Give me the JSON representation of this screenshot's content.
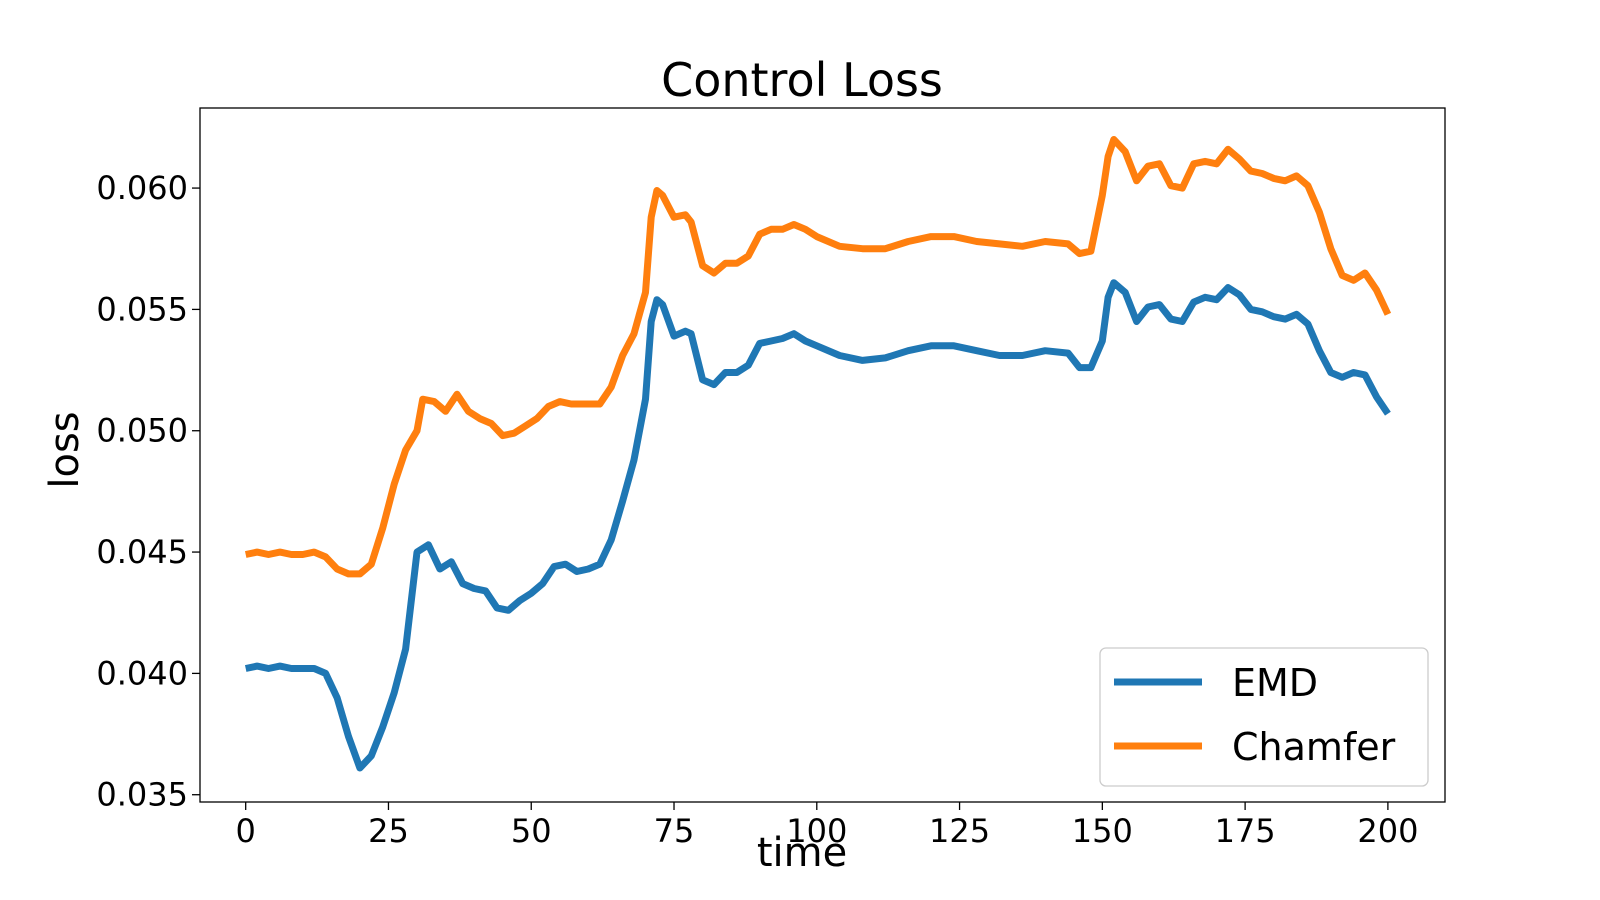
{
  "chart_data": {
    "type": "line",
    "title": "Control Loss",
    "xlabel": "time",
    "ylabel": "loss",
    "xlim": [
      -8,
      210
    ],
    "ylim": [
      0.0347,
      0.0633
    ],
    "xticks": [
      0,
      25,
      50,
      75,
      100,
      125,
      150,
      175,
      200
    ],
    "xtick_labels": [
      "0",
      "25",
      "50",
      "75",
      "100",
      "125",
      "150",
      "175",
      "200"
    ],
    "yticks": [
      0.035,
      0.04,
      0.045,
      0.05,
      0.055,
      0.06
    ],
    "ytick_labels": [
      "0.035",
      "0.040",
      "0.045",
      "0.050",
      "0.055",
      "0.060"
    ],
    "grid": false,
    "legend_position": "bottom-right",
    "series": [
      {
        "name": "EMD",
        "color": "#1f77b4",
        "points": [
          [
            0,
            0.0402
          ],
          [
            2,
            0.0403
          ],
          [
            4,
            0.0402
          ],
          [
            6,
            0.0403
          ],
          [
            8,
            0.0402
          ],
          [
            10,
            0.0402
          ],
          [
            12,
            0.0402
          ],
          [
            14,
            0.04
          ],
          [
            16,
            0.039
          ],
          [
            18,
            0.0374
          ],
          [
            20,
            0.0361
          ],
          [
            22,
            0.0366
          ],
          [
            24,
            0.0378
          ],
          [
            26,
            0.0392
          ],
          [
            28,
            0.041
          ],
          [
            30,
            0.045
          ],
          [
            32,
            0.0453
          ],
          [
            34,
            0.0443
          ],
          [
            36,
            0.0446
          ],
          [
            38,
            0.0437
          ],
          [
            40,
            0.0435
          ],
          [
            42,
            0.0434
          ],
          [
            44,
            0.0427
          ],
          [
            46,
            0.0426
          ],
          [
            48,
            0.043
          ],
          [
            50,
            0.0433
          ],
          [
            52,
            0.0437
          ],
          [
            54,
            0.0444
          ],
          [
            56,
            0.0445
          ],
          [
            58,
            0.0442
          ],
          [
            60,
            0.0443
          ],
          [
            62,
            0.0445
          ],
          [
            64,
            0.0455
          ],
          [
            66,
            0.0471
          ],
          [
            68,
            0.0488
          ],
          [
            70,
            0.0513
          ],
          [
            71,
            0.0545
          ],
          [
            72,
            0.0554
          ],
          [
            73,
            0.0552
          ],
          [
            75,
            0.0539
          ],
          [
            77,
            0.0541
          ],
          [
            78,
            0.054
          ],
          [
            80,
            0.0521
          ],
          [
            82,
            0.0519
          ],
          [
            84,
            0.0524
          ],
          [
            86,
            0.0524
          ],
          [
            88,
            0.0527
          ],
          [
            90,
            0.0536
          ],
          [
            92,
            0.0537
          ],
          [
            94,
            0.0538
          ],
          [
            96,
            0.054
          ],
          [
            98,
            0.0537
          ],
          [
            100,
            0.0535
          ],
          [
            104,
            0.0531
          ],
          [
            108,
            0.0529
          ],
          [
            112,
            0.053
          ],
          [
            116,
            0.0533
          ],
          [
            120,
            0.0535
          ],
          [
            124,
            0.0535
          ],
          [
            128,
            0.0533
          ],
          [
            132,
            0.0531
          ],
          [
            136,
            0.0531
          ],
          [
            140,
            0.0533
          ],
          [
            144,
            0.0532
          ],
          [
            146,
            0.0526
          ],
          [
            148,
            0.0526
          ],
          [
            150,
            0.0537
          ],
          [
            151,
            0.0555
          ],
          [
            152,
            0.0561
          ],
          [
            154,
            0.0557
          ],
          [
            156,
            0.0545
          ],
          [
            158,
            0.0551
          ],
          [
            160,
            0.0552
          ],
          [
            162,
            0.0546
          ],
          [
            164,
            0.0545
          ],
          [
            166,
            0.0553
          ],
          [
            168,
            0.0555
          ],
          [
            170,
            0.0554
          ],
          [
            172,
            0.0559
          ],
          [
            174,
            0.0556
          ],
          [
            176,
            0.055
          ],
          [
            178,
            0.0549
          ],
          [
            180,
            0.0547
          ],
          [
            182,
            0.0546
          ],
          [
            184,
            0.0548
          ],
          [
            186,
            0.0544
          ],
          [
            188,
            0.0533
          ],
          [
            190,
            0.0524
          ],
          [
            192,
            0.0522
          ],
          [
            194,
            0.0524
          ],
          [
            196,
            0.0523
          ],
          [
            198,
            0.0514
          ],
          [
            200,
            0.0507
          ]
        ]
      },
      {
        "name": "Chamfer",
        "color": "#ff7f0e",
        "points": [
          [
            0,
            0.0449
          ],
          [
            2,
            0.045
          ],
          [
            4,
            0.0449
          ],
          [
            6,
            0.045
          ],
          [
            8,
            0.0449
          ],
          [
            10,
            0.0449
          ],
          [
            12,
            0.045
          ],
          [
            14,
            0.0448
          ],
          [
            16,
            0.0443
          ],
          [
            18,
            0.0441
          ],
          [
            20,
            0.0441
          ],
          [
            22,
            0.0445
          ],
          [
            24,
            0.046
          ],
          [
            26,
            0.0478
          ],
          [
            28,
            0.0492
          ],
          [
            30,
            0.05
          ],
          [
            31,
            0.0513
          ],
          [
            33,
            0.0512
          ],
          [
            35,
            0.0508
          ],
          [
            37,
            0.0515
          ],
          [
            39,
            0.0508
          ],
          [
            41,
            0.0505
          ],
          [
            43,
            0.0503
          ],
          [
            45,
            0.0498
          ],
          [
            47,
            0.0499
          ],
          [
            49,
            0.0502
          ],
          [
            51,
            0.0505
          ],
          [
            53,
            0.051
          ],
          [
            55,
            0.0512
          ],
          [
            57,
            0.0511
          ],
          [
            60,
            0.0511
          ],
          [
            62,
            0.0511
          ],
          [
            64,
            0.0518
          ],
          [
            66,
            0.0531
          ],
          [
            68,
            0.054
          ],
          [
            70,
            0.0557
          ],
          [
            71,
            0.0588
          ],
          [
            72,
            0.0599
          ],
          [
            73,
            0.0597
          ],
          [
            75,
            0.0588
          ],
          [
            77,
            0.0589
          ],
          [
            78,
            0.0586
          ],
          [
            80,
            0.0568
          ],
          [
            82,
            0.0565
          ],
          [
            84,
            0.0569
          ],
          [
            86,
            0.0569
          ],
          [
            88,
            0.0572
          ],
          [
            90,
            0.0581
          ],
          [
            92,
            0.0583
          ],
          [
            94,
            0.0583
          ],
          [
            96,
            0.0585
          ],
          [
            98,
            0.0583
          ],
          [
            100,
            0.058
          ],
          [
            104,
            0.0576
          ],
          [
            108,
            0.0575
          ],
          [
            112,
            0.0575
          ],
          [
            116,
            0.0578
          ],
          [
            120,
            0.058
          ],
          [
            124,
            0.058
          ],
          [
            128,
            0.0578
          ],
          [
            132,
            0.0577
          ],
          [
            136,
            0.0576
          ],
          [
            140,
            0.0578
          ],
          [
            144,
            0.0577
          ],
          [
            146,
            0.0573
          ],
          [
            148,
            0.0574
          ],
          [
            150,
            0.0597
          ],
          [
            151,
            0.0613
          ],
          [
            152,
            0.062
          ],
          [
            154,
            0.0615
          ],
          [
            156,
            0.0603
          ],
          [
            158,
            0.0609
          ],
          [
            160,
            0.061
          ],
          [
            162,
            0.0601
          ],
          [
            164,
            0.06
          ],
          [
            166,
            0.061
          ],
          [
            168,
            0.0611
          ],
          [
            170,
            0.061
          ],
          [
            172,
            0.0616
          ],
          [
            174,
            0.0612
          ],
          [
            176,
            0.0607
          ],
          [
            178,
            0.0606
          ],
          [
            180,
            0.0604
          ],
          [
            182,
            0.0603
          ],
          [
            184,
            0.0605
          ],
          [
            186,
            0.0601
          ],
          [
            188,
            0.059
          ],
          [
            190,
            0.0575
          ],
          [
            192,
            0.0564
          ],
          [
            194,
            0.0562
          ],
          [
            196,
            0.0565
          ],
          [
            198,
            0.0558
          ],
          [
            200,
            0.0548
          ]
        ]
      }
    ]
  }
}
